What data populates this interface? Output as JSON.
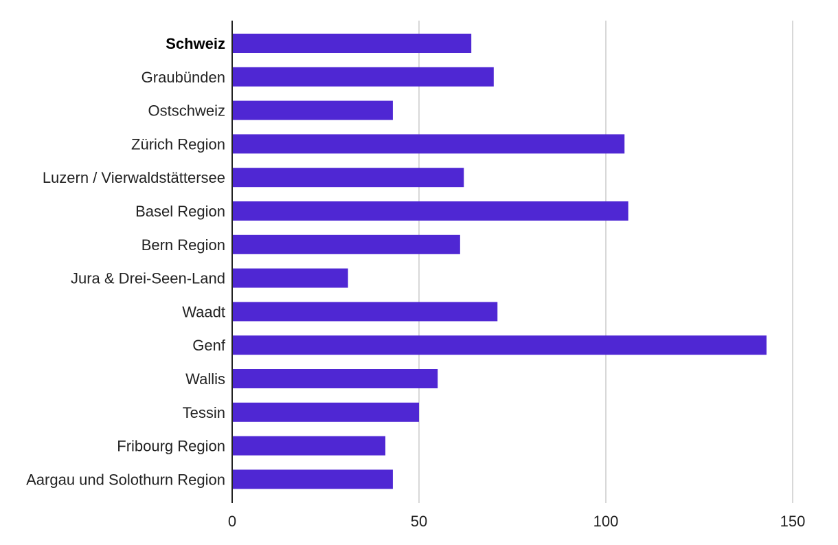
{
  "chart_data": {
    "type": "bar",
    "orientation": "horizontal",
    "categories": [
      "Schweiz",
      "Graubünden",
      "Ostschweiz",
      "Zürich Region",
      "Luzern / Vierwaldstättersee",
      "Basel Region",
      "Bern Region",
      "Jura & Drei-Seen-Land",
      "Waadt",
      "Genf",
      "Wallis",
      "Tessin",
      "Fribourg Region",
      "Aargau und Solothurn Region"
    ],
    "highlighted_category": "Schweiz",
    "values": [
      64,
      70,
      43,
      105,
      62,
      106,
      61,
      31,
      71,
      143,
      55,
      50,
      41,
      43
    ],
    "title": "",
    "xlabel": "",
    "ylabel": "",
    "xlim": [
      0,
      150
    ],
    "xticks": [
      0,
      50,
      100,
      150
    ],
    "xtick_labels": [
      "0",
      "50",
      "100",
      "150"
    ],
    "grid": "vertical",
    "legend": "none",
    "colors": {
      "bar": "#4f27d3",
      "grid": "#cccccc",
      "axis": "#222222",
      "text": "#222222"
    }
  }
}
